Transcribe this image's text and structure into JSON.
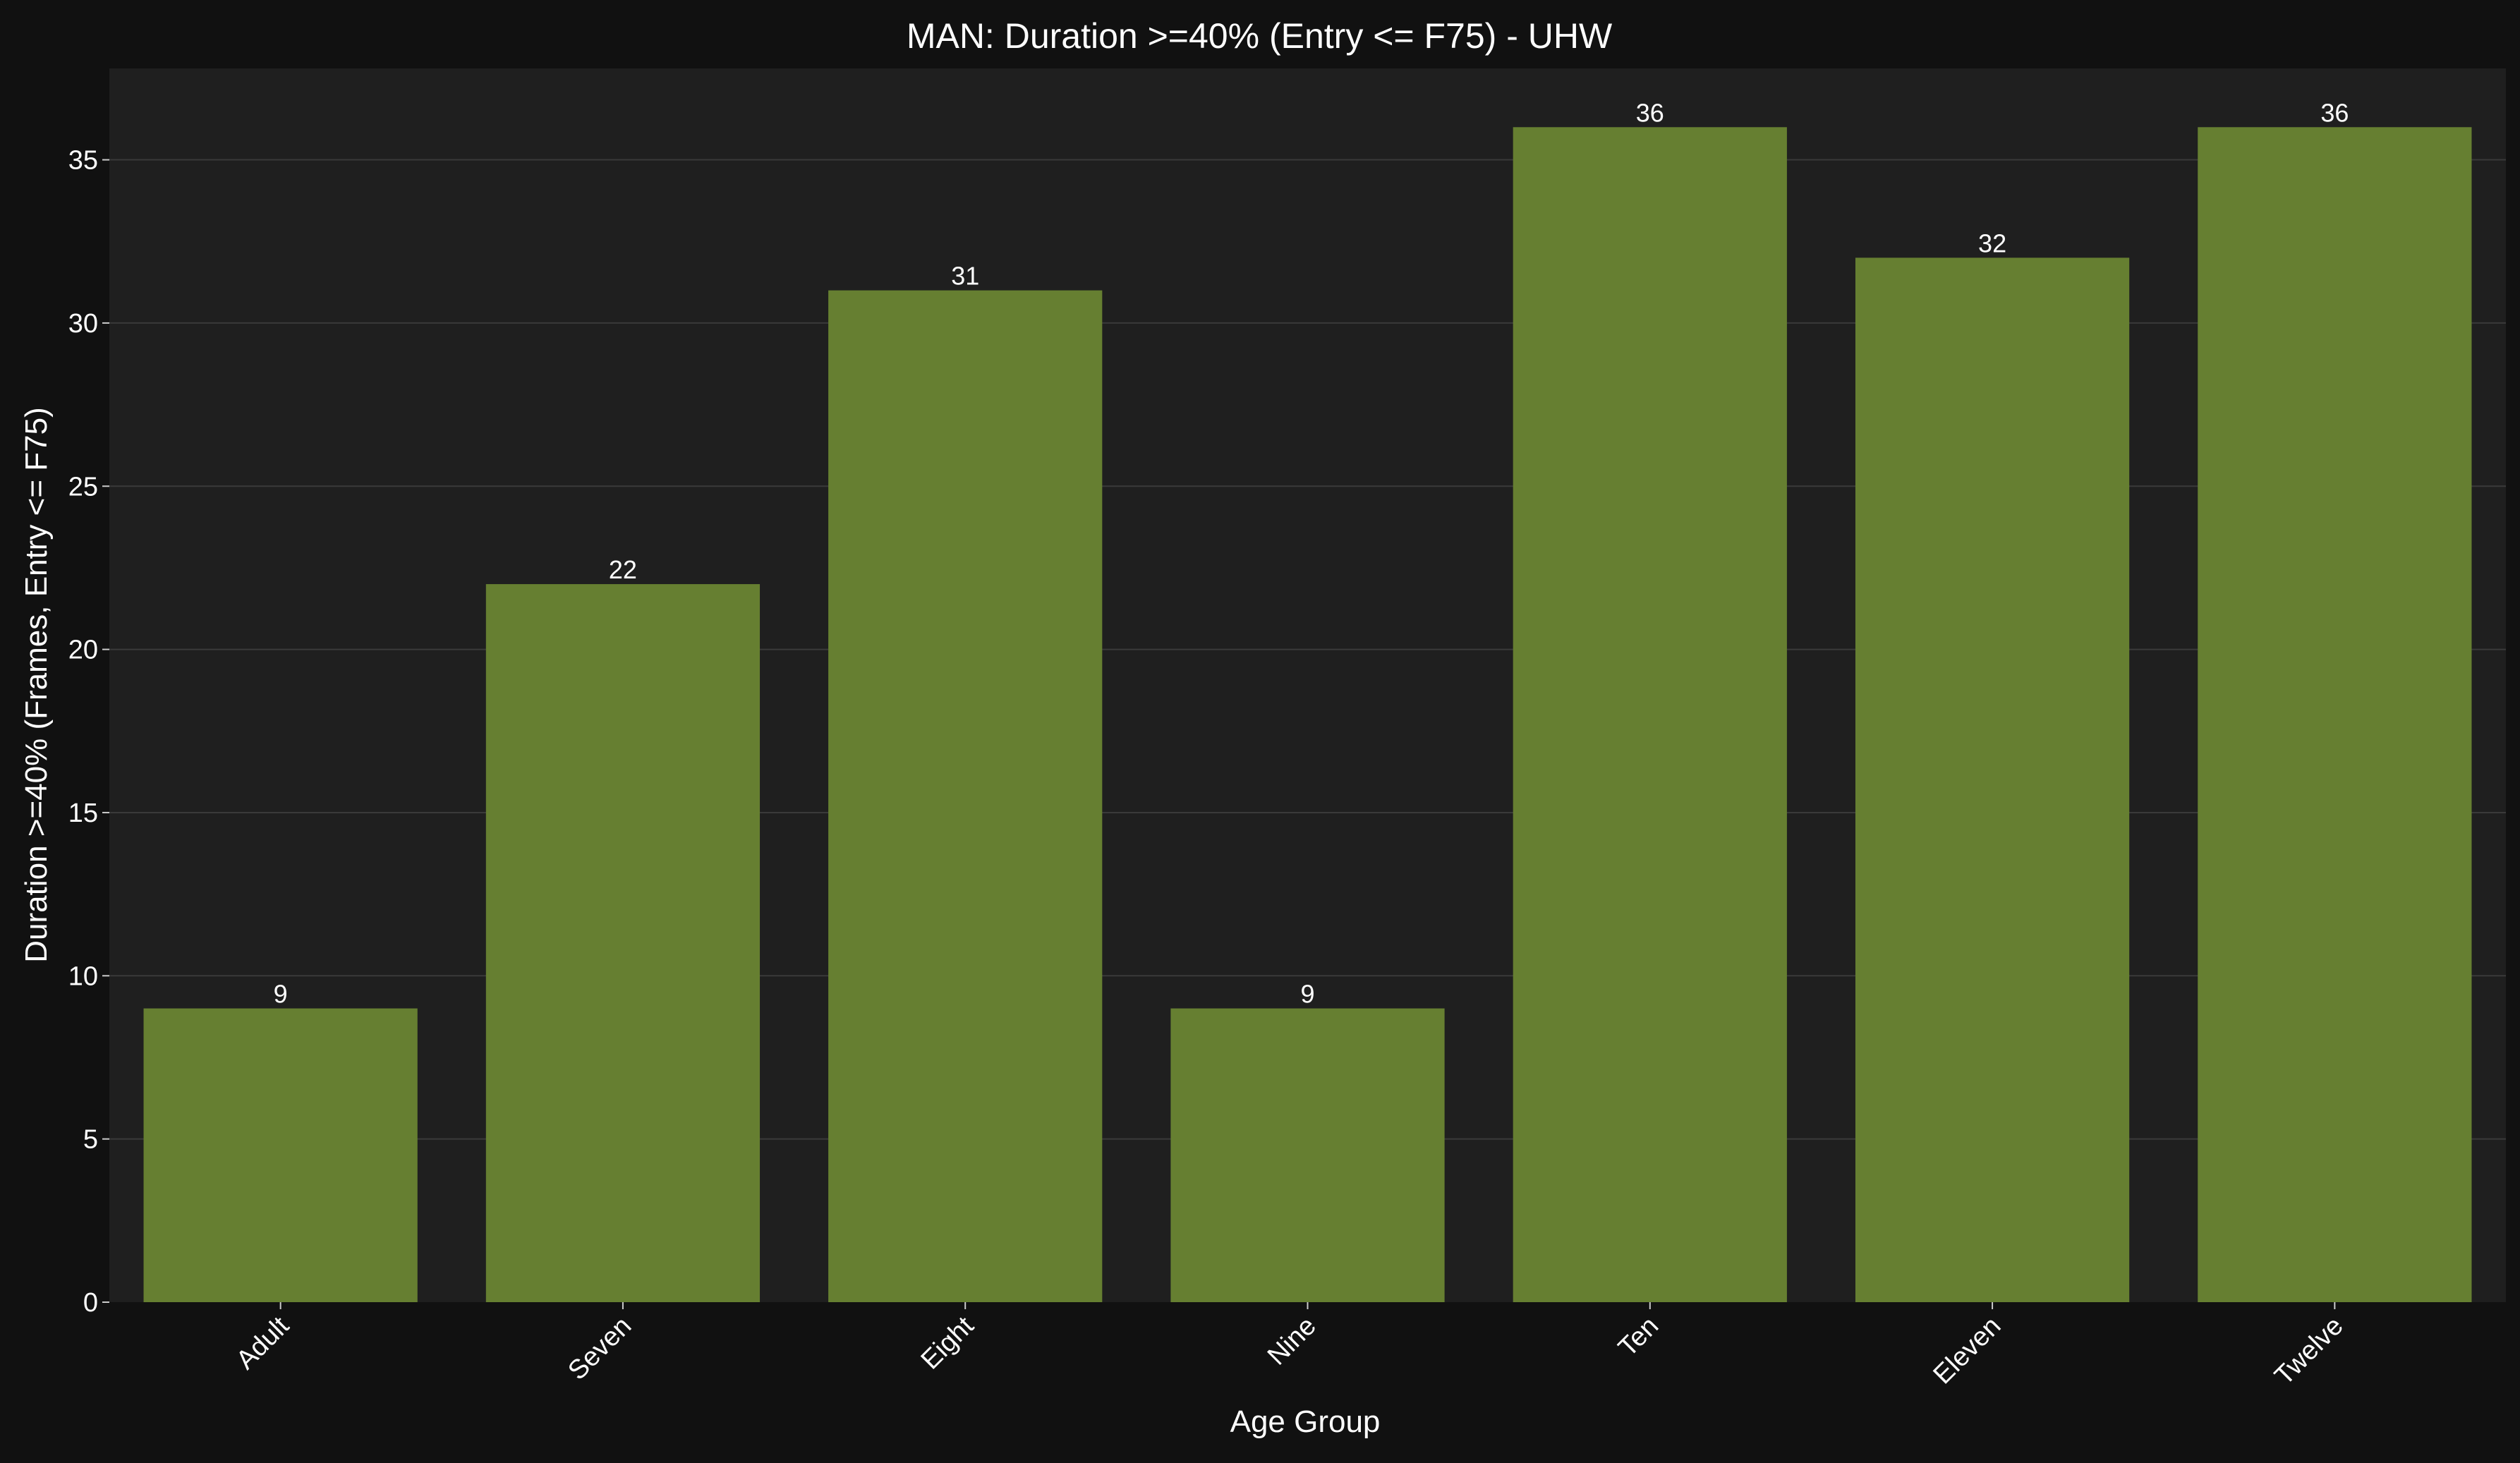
{
  "chart_data": {
    "type": "bar",
    "title": "MAN: Duration >=40% (Entry <= F75) - UHW",
    "xlabel": "Age Group",
    "ylabel": "Duration >=40% (Frames, Entry <= F75)",
    "categories": [
      "Adult",
      "Seven",
      "Eight",
      "Nine",
      "Ten",
      "Eleven",
      "Twelve"
    ],
    "values": [
      9,
      22,
      31,
      9,
      36,
      32,
      36
    ],
    "ylim": [
      0,
      37.8
    ],
    "yticks": [
      0,
      5,
      10,
      15,
      20,
      25,
      30,
      35
    ],
    "grid": true,
    "colors": {
      "figure_background": "#111111",
      "plot_background": "#1f1f1f",
      "bar": "#667f31",
      "text": "#ffffff"
    }
  }
}
